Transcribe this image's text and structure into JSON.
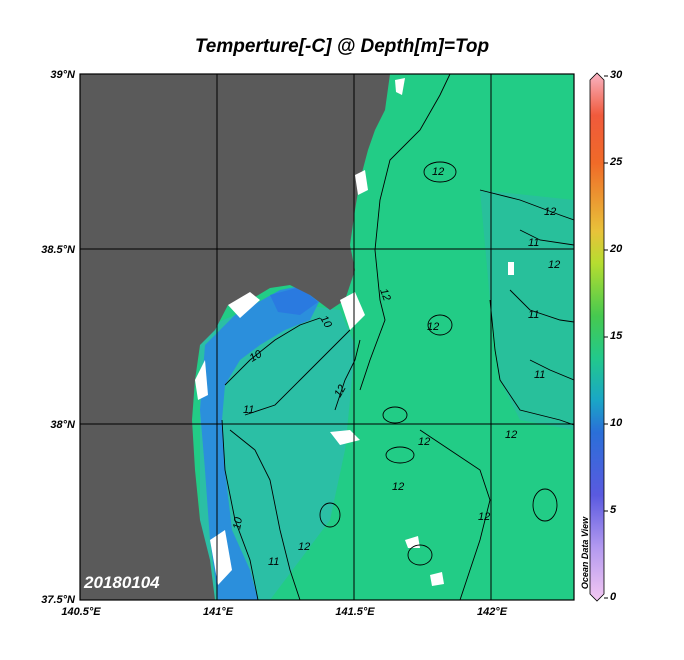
{
  "title": "Temperture[-C] @ Depth[m]=Top",
  "date_label": "20180104",
  "watermark": "Ocean Data View",
  "lat_labels": [
    "39°N",
    "38.5°N",
    "38°N",
    "37.5°N"
  ],
  "lon_labels": [
    "140.5°E",
    "141°E",
    "141.5°E",
    "142°E"
  ],
  "colorbar": {
    "labels": [
      "30",
      "25",
      "20",
      "15",
      "10",
      "5",
      "0"
    ],
    "colors": [
      "#f9b4c4",
      "#f05a3c",
      "#f29a2a",
      "#e8d23a",
      "#b6dd30",
      "#46c94f",
      "#22c98b",
      "#1aa6c6",
      "#2a6fd8",
      "#5a5ae0",
      "#b49af0",
      "#f4c8f2"
    ]
  },
  "contour_labels": [
    "10",
    "11",
    "12"
  ],
  "colors": {
    "land": "#5a5a5a",
    "sea_warm": "#22cc86",
    "sea_mid": "#2bbfa5",
    "sea_cool": "#2b8fdc"
  }
}
